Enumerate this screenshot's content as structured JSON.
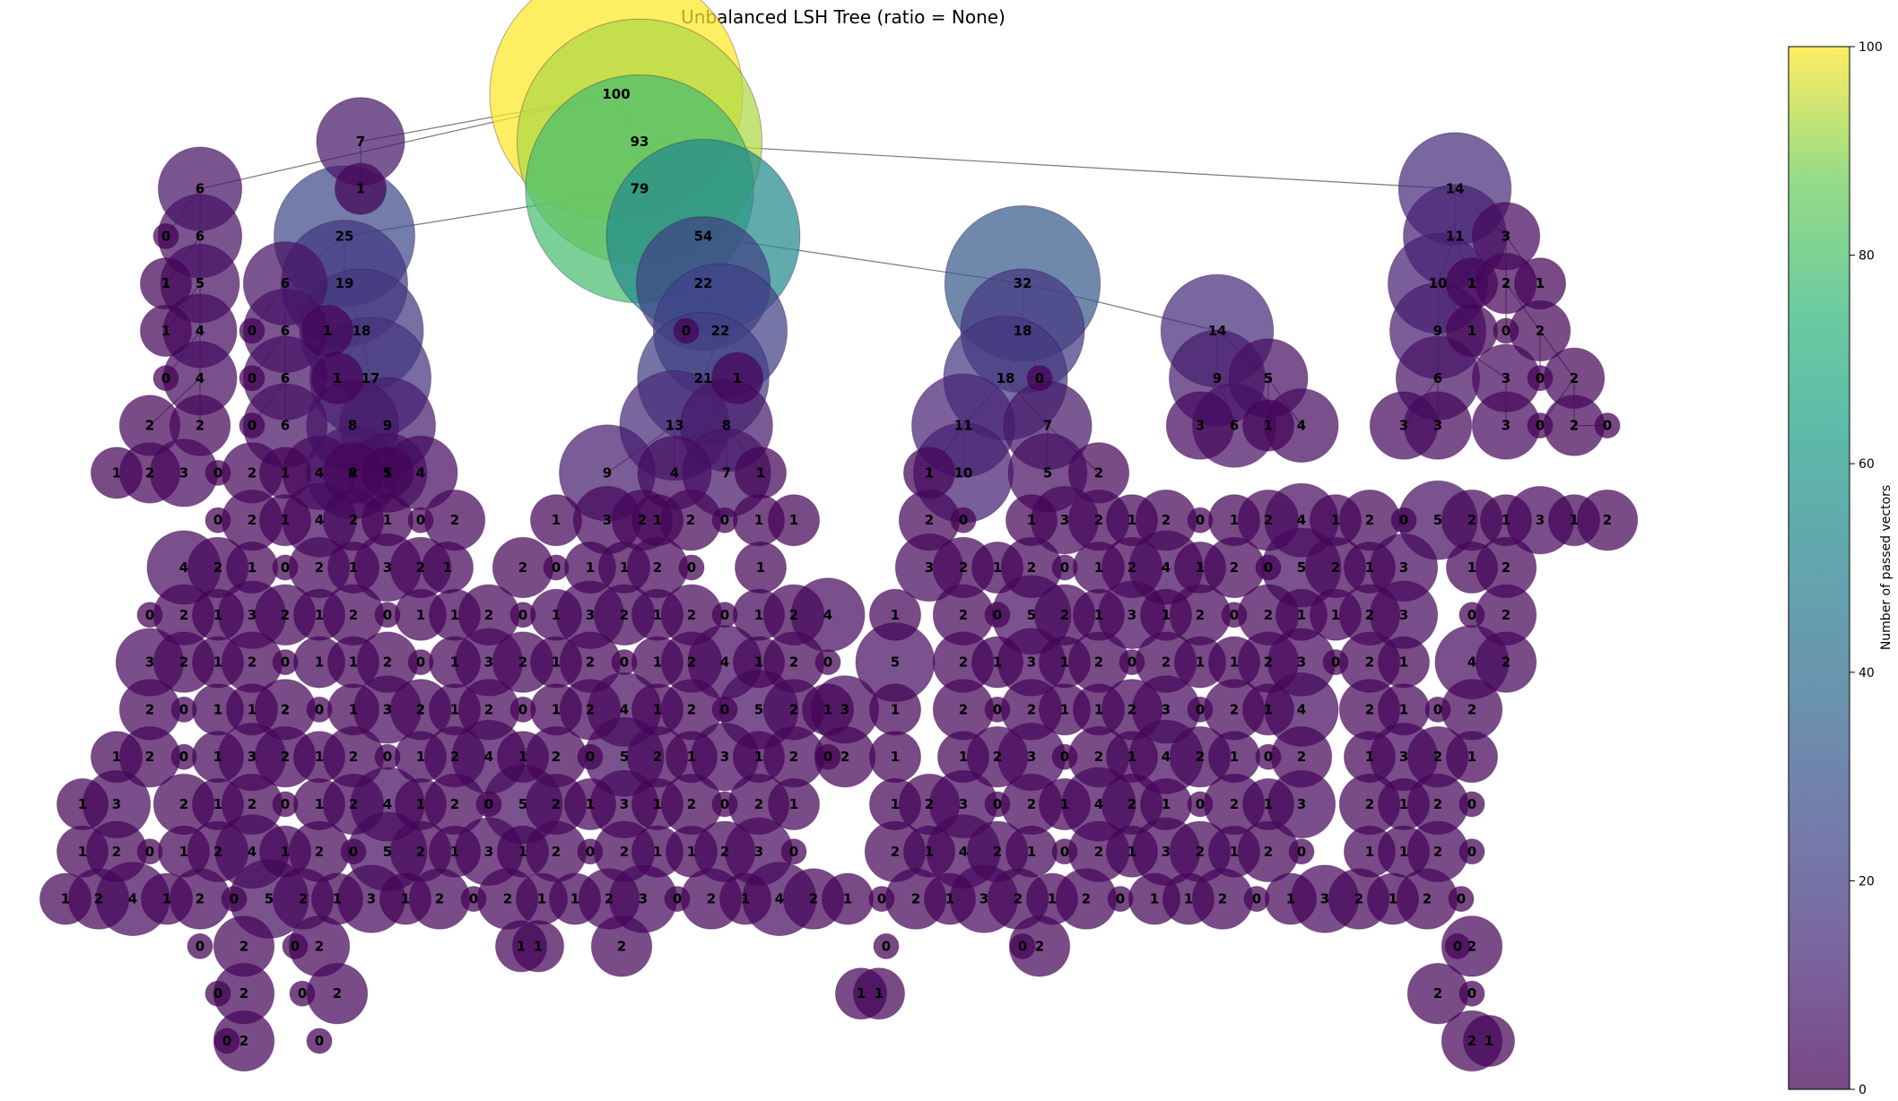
{
  "title": "Unbalanced LSH Tree (ratio = None)",
  "colorbar": {
    "label": "Number of passed vectors",
    "min": 0,
    "max": 100,
    "ticks": [
      "0",
      "20",
      "40",
      "60",
      "80",
      "100"
    ],
    "colormap": "viridis"
  },
  "tree": {
    "root_value": 100,
    "visible_subtrees": [
      {
        "root": 7,
        "child": 1
      },
      {
        "root": 93,
        "children": [
          79,
          14
        ]
      },
      {
        "root": 79,
        "children": [
          25,
          54
        ]
      },
      {
        "root": 54,
        "children": [
          22,
          32
        ]
      },
      {
        "root": 32,
        "children": [
          18,
          14
        ]
      },
      {
        "root": 14,
        "children": [
          11,
          3
        ]
      }
    ]
  }
}
